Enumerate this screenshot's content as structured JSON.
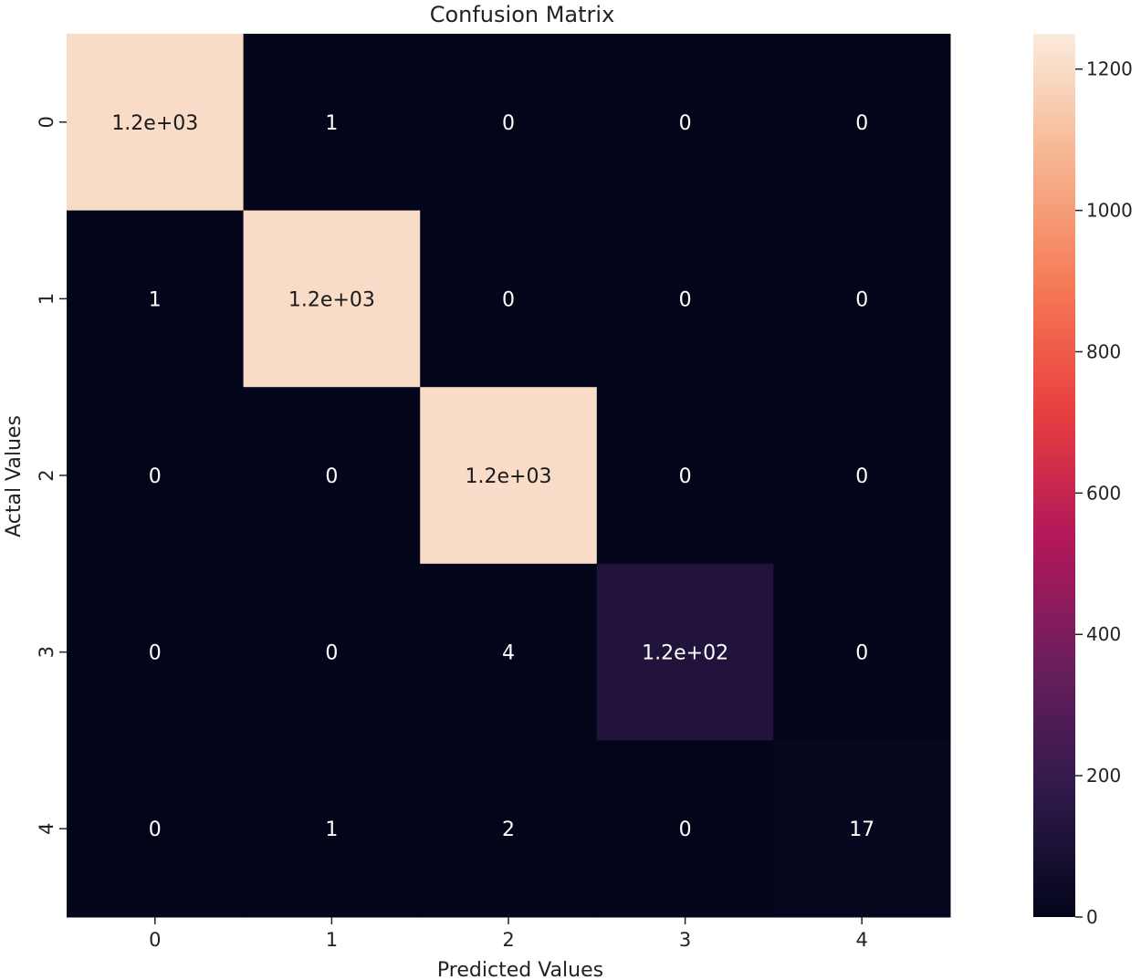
{
  "chart_data": {
    "type": "heatmap",
    "title": "Confusion Matrix",
    "xlabel": "Predicted Values",
    "ylabel": "Actal Values",
    "x_categories": [
      "0",
      "1",
      "2",
      "3",
      "4"
    ],
    "y_categories": [
      "0",
      "1",
      "2",
      "3",
      "4"
    ],
    "values": [
      [
        1200,
        1,
        0,
        0,
        0
      ],
      [
        1,
        1200,
        0,
        0,
        0
      ],
      [
        0,
        0,
        1200,
        0,
        0
      ],
      [
        0,
        0,
        4,
        120,
        0
      ],
      [
        0,
        1,
        2,
        0,
        17
      ]
    ],
    "annotations": [
      [
        "1.2e+03",
        "1",
        "0",
        "0",
        "0"
      ],
      [
        "1",
        "1.2e+03",
        "0",
        "0",
        "0"
      ],
      [
        "0",
        "0",
        "1.2e+03",
        "0",
        "0"
      ],
      [
        "0",
        "0",
        "4",
        "1.2e+02",
        "0"
      ],
      [
        "0",
        "1",
        "2",
        "0",
        "17"
      ]
    ],
    "colorbar": {
      "min": 0,
      "max": 1250,
      "ticks": [
        0,
        200,
        400,
        600,
        800,
        1000,
        1200
      ],
      "colors": [
        "#03051a",
        "#2f1a4b",
        "#6b1e5e",
        "#b2185a",
        "#e83f3f",
        "#f57a56",
        "#f6b48f",
        "#faebdd"
      ]
    },
    "cell_text_color_dark": "#ffffff",
    "cell_text_color_light": "#1a1a1a"
  }
}
